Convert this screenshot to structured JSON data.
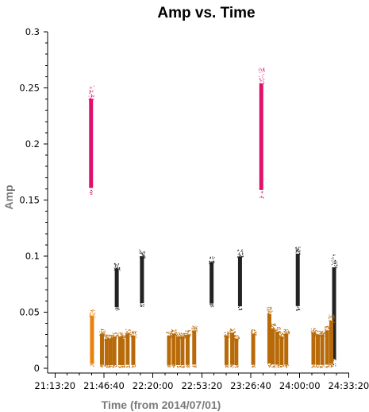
{
  "chart_data": {
    "type": "scatter",
    "title": "Amp vs. Time",
    "xlabel": "Time (from 2014/07/01)",
    "ylabel": "Amp",
    "ylim": [
      0,
      0.3
    ],
    "yticks": [
      "0",
      "0.05",
      "0.1",
      "0.15",
      "0.2",
      "0.25",
      "0.3"
    ],
    "yticks_values": [
      0,
      0.05,
      0.1,
      0.15,
      0.2,
      0.25,
      0.3
    ],
    "xlim_seconds_of_day": [
      76100,
      88420
    ],
    "xticks": [
      "21:13:20",
      "21:46:40",
      "22:20:00",
      "22:53:20",
      "23:26:40",
      "24:00:00",
      "24:33:20"
    ],
    "xticks_values_seconds_of_day": [
      76400,
      78400,
      80400,
      82400,
      84400,
      86400,
      88400
    ],
    "grid": false,
    "legend": "none",
    "colors": {
      "magenta": "#e0106c",
      "black": "#222222",
      "orange": "#e8820c",
      "brown": "#b86a08"
    },
    "series": [
      {
        "color": "magenta",
        "clusters": [
          {
            "t": 77875,
            "y_min": 0.155,
            "y_max": 0.252
          },
          {
            "t": 84830,
            "y_min": 0.152,
            "y_max": 0.268
          }
        ]
      },
      {
        "color": "black",
        "clusters": [
          {
            "t": 78925,
            "y_min": 0.052,
            "y_max": 0.094
          },
          {
            "t": 79955,
            "y_min": 0.055,
            "y_max": 0.106
          },
          {
            "t": 82800,
            "y_min": 0.055,
            "y_max": 0.1
          },
          {
            "t": 83960,
            "y_min": 0.052,
            "y_max": 0.106
          },
          {
            "t": 86320,
            "y_min": 0.052,
            "y_max": 0.109
          },
          {
            "t": 87805,
            "y_min": 0.002,
            "y_max": 0.102
          }
        ]
      },
      {
        "color": "orange",
        "clusters": [
          {
            "t": 77915,
            "y_min": 0.001,
            "y_max": 0.053
          }
        ]
      },
      {
        "color": "brown",
        "clusters": [
          {
            "t": 78320,
            "y_min": 0.001,
            "y_max": 0.035
          },
          {
            "t": 78510,
            "y_min": 0.001,
            "y_max": 0.03
          },
          {
            "t": 78670,
            "y_min": 0.001,
            "y_max": 0.03
          },
          {
            "t": 78830,
            "y_min": 0.001,
            "y_max": 0.032
          },
          {
            "t": 79065,
            "y_min": 0.001,
            "y_max": 0.032
          },
          {
            "t": 79170,
            "y_min": 0.001,
            "y_max": 0.03
          },
          {
            "t": 79370,
            "y_min": 0.001,
            "y_max": 0.035
          },
          {
            "t": 79600,
            "y_min": 0.001,
            "y_max": 0.033
          },
          {
            "t": 81060,
            "y_min": 0.001,
            "y_max": 0.033
          },
          {
            "t": 81250,
            "y_min": 0.001,
            "y_max": 0.035
          },
          {
            "t": 81430,
            "y_min": 0.001,
            "y_max": 0.032
          },
          {
            "t": 81610,
            "y_min": 0.001,
            "y_max": 0.032
          },
          {
            "t": 81820,
            "y_min": 0.001,
            "y_max": 0.034
          },
          {
            "t": 82090,
            "y_min": 0.001,
            "y_max": 0.038
          },
          {
            "t": 83410,
            "y_min": 0.001,
            "y_max": 0.033
          },
          {
            "t": 83640,
            "y_min": 0.001,
            "y_max": 0.036
          },
          {
            "t": 83810,
            "y_min": 0.001,
            "y_max": 0.03
          },
          {
            "t": 84500,
            "y_min": 0.001,
            "y_max": 0.035
          },
          {
            "t": 85160,
            "y_min": 0.001,
            "y_max": 0.055
          },
          {
            "t": 85300,
            "y_min": 0.001,
            "y_max": 0.04
          },
          {
            "t": 85480,
            "y_min": 0.001,
            "y_max": 0.037
          },
          {
            "t": 85660,
            "y_min": 0.001,
            "y_max": 0.032
          },
          {
            "t": 85850,
            "y_min": 0.001,
            "y_max": 0.035
          },
          {
            "t": 86960,
            "y_min": 0.001,
            "y_max": 0.036
          },
          {
            "t": 87140,
            "y_min": 0.001,
            "y_max": 0.034
          },
          {
            "t": 87320,
            "y_min": 0.001,
            "y_max": 0.034
          },
          {
            "t": 87520,
            "y_min": 0.001,
            "y_max": 0.038
          },
          {
            "t": 87690,
            "y_min": 0.001,
            "y_max": 0.048
          }
        ]
      }
    ]
  }
}
